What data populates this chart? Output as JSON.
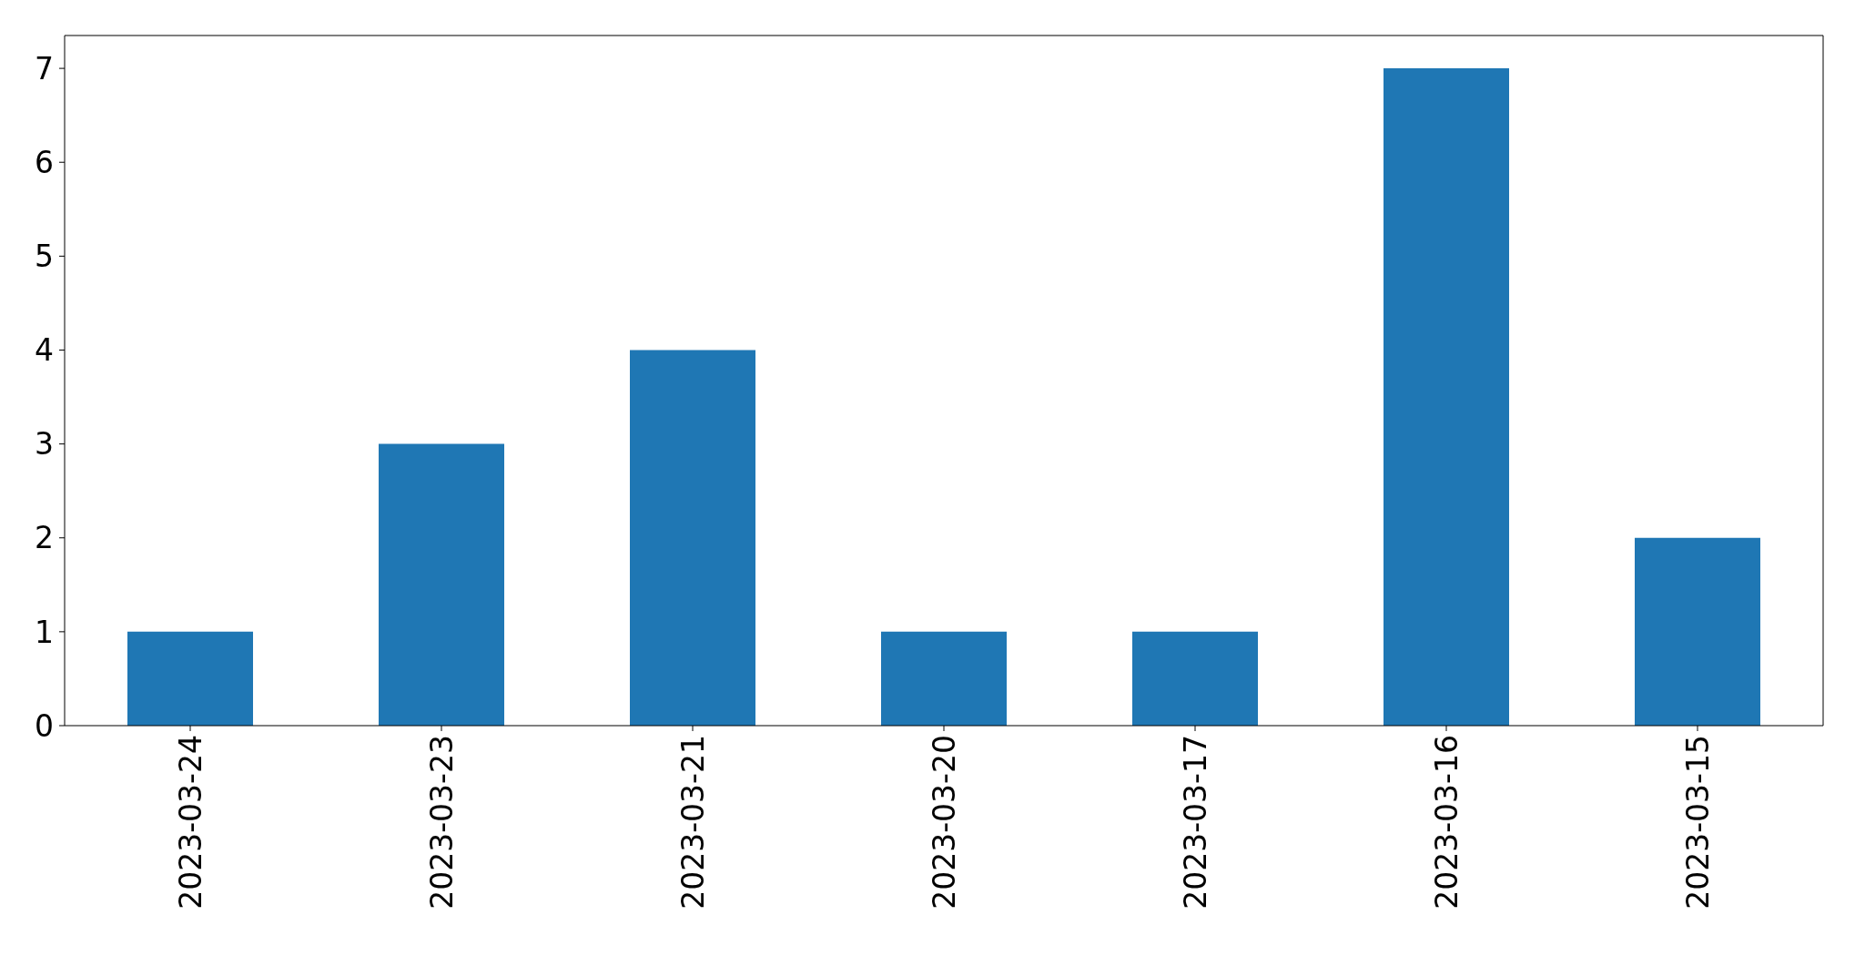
{
  "chart_data": {
    "type": "bar",
    "categories": [
      "2023-03-24",
      "2023-03-23",
      "2023-03-21",
      "2023-03-20",
      "2023-03-17",
      "2023-03-16",
      "2023-03-15"
    ],
    "values": [
      1,
      3,
      4,
      1,
      1,
      7,
      2
    ],
    "color": "#1f77b4",
    "ylim": [
      0,
      7.35
    ],
    "yticks": [
      0,
      1,
      2,
      3,
      4,
      5,
      6,
      7
    ]
  }
}
